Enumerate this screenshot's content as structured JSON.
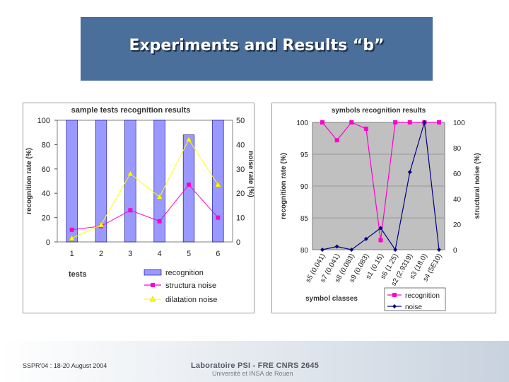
{
  "slide_title": "Experiments and Results “b”",
  "footer": {
    "conference": "SSPR'04 : 18-20 August 2004",
    "lab": "Laboratoire PSI - FRE CNRS 2645",
    "university": "Université et INSA de Rouen"
  },
  "chart_data": [
    {
      "type": "bar",
      "title": "sample tests recognition results",
      "xlabel": "tests",
      "ylabel": "recognition rate (%)",
      "y2label": "noise rate (%)",
      "categories": [
        "1",
        "2",
        "3",
        "4",
        "5",
        "6"
      ],
      "ylim": [
        0,
        100
      ],
      "y2lim": [
        0,
        50
      ],
      "yticks": [
        0,
        20,
        40,
        60,
        80,
        100
      ],
      "y2ticks": [
        0,
        10,
        20,
        30,
        40,
        50
      ],
      "legend_position": "bottom",
      "series": [
        {
          "name": "recognition",
          "kind": "bar",
          "axis": "left",
          "color": "#9999ff",
          "values": [
            100,
            100,
            100,
            100,
            88,
            100
          ]
        },
        {
          "name": "structura noise",
          "kind": "line",
          "axis": "right",
          "color": "#ff00cc",
          "marker": "square",
          "values": [
            5,
            6.5,
            13,
            8.5,
            23.5,
            10
          ]
        },
        {
          "name": "dilatation noise",
          "kind": "line",
          "axis": "right",
          "color": "#ffff00",
          "marker": "triangle",
          "values": [
            1.5,
            7,
            28,
            18.5,
            42,
            23.5
          ]
        }
      ]
    },
    {
      "type": "line",
      "title": "symbols recognition results",
      "xlabel": "symbol classes",
      "ylabel": "recognition rate (%)",
      "y2label": "structural noise (%)",
      "categories": [
        "s5 (0.041)",
        "s7 (0.041)",
        "s8 (0.083)",
        "s9 (0.083)",
        "s1 (0.15)",
        "s6 (1.25)",
        "s2 (2.9319)",
        "s3 (18.0)",
        "s4 (5E10)"
      ],
      "ylim": [
        80,
        100
      ],
      "y2lim": [
        0,
        100
      ],
      "yticks": [
        80,
        85,
        90,
        95,
        100
      ],
      "y2ticks": [
        0,
        20,
        40,
        60,
        80,
        100
      ],
      "legend_position": "bottom-right",
      "series": [
        {
          "name": "recognition",
          "axis": "left",
          "color": "#ff00cc",
          "marker": "square",
          "values": [
            100,
            97.2,
            100,
            99,
            81.5,
            100,
            100,
            100,
            100
          ]
        },
        {
          "name": "noise",
          "axis": "right",
          "color": "#000080",
          "marker": "diamond",
          "values": [
            0,
            2.5,
            0,
            8.5,
            17,
            0,
            61,
            100,
            0
          ]
        }
      ]
    }
  ]
}
